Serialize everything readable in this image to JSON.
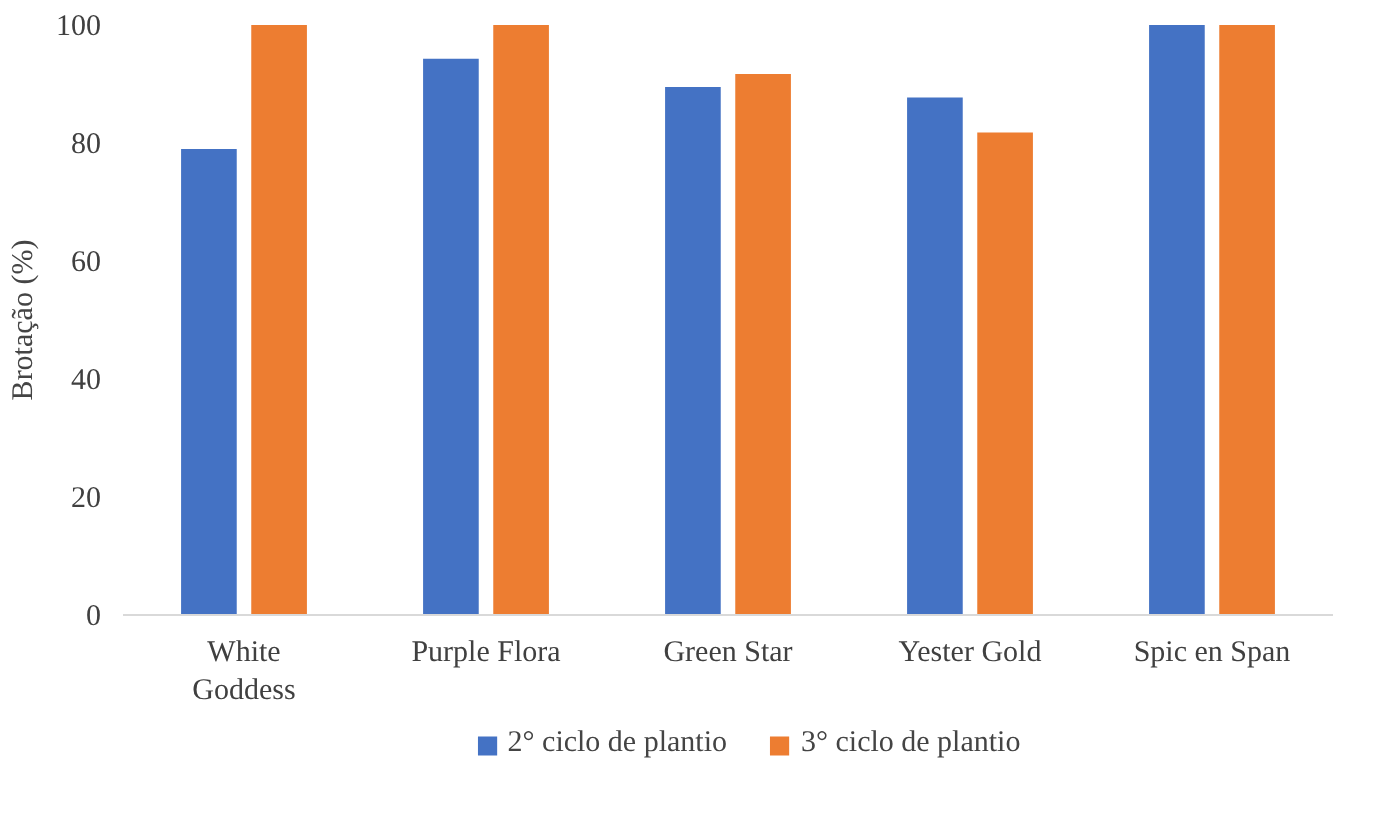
{
  "chart_data": {
    "type": "bar",
    "ylabel": "Brotação (%)",
    "categories": [
      "White Goddess",
      "Purple Flora",
      "Green Star",
      "Yester Gold",
      "Spic en Span"
    ],
    "series": [
      {
        "name": "2° ciclo de plantio",
        "color": "#4472c4",
        "values": [
          79,
          94.3,
          89.5,
          87.7,
          100
        ]
      },
      {
        "name": "3° ciclo de plantio",
        "color": "#ed7d31",
        "values": [
          100,
          100,
          91.7,
          81.8,
          100
        ]
      }
    ],
    "ylim": [
      0,
      100
    ],
    "yticks": [
      0,
      20,
      40,
      60,
      80,
      100
    ],
    "grid": false,
    "legend": "bottom"
  }
}
